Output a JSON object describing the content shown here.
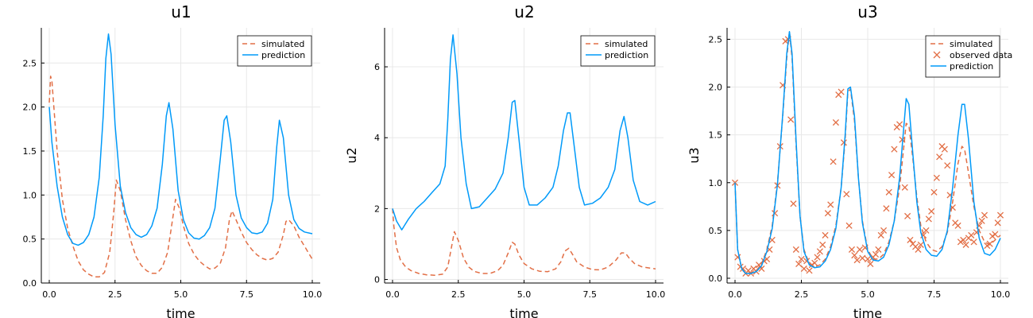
{
  "colors": {
    "simulated": "#e26f46",
    "prediction": "#009af9",
    "observed": "#e26f46"
  },
  "chart_data": [
    {
      "type": "line",
      "title": "u1",
      "xlabel": "time",
      "ylabel": "",
      "xlim": [
        0,
        10
      ],
      "ylim": [
        0,
        2.9
      ],
      "xticks": [
        "0.0",
        "2.5",
        "5.0",
        "7.5",
        "10.0"
      ],
      "yticks": [
        "0.0",
        "0.5",
        "1.0",
        "1.5",
        "2.0",
        "2.5"
      ],
      "grid": true,
      "legend": "top-right",
      "series": [
        {
          "name": "simulated",
          "style": "dashed",
          "x": [
            0,
            0.05,
            0.1,
            0.2,
            0.3,
            0.5,
            0.7,
            0.9,
            1.1,
            1.3,
            1.5,
            1.7,
            1.9,
            2.1,
            2.3,
            2.45,
            2.55,
            2.7,
            2.9,
            3.1,
            3.3,
            3.5,
            3.7,
            3.9,
            4.1,
            4.3,
            4.5,
            4.7,
            4.8,
            4.95,
            5.1,
            5.3,
            5.5,
            5.7,
            5.9,
            6.1,
            6.3,
            6.5,
            6.7,
            6.85,
            6.95,
            7.1,
            7.3,
            7.5,
            7.7,
            7.9,
            8.1,
            8.3,
            8.5,
            8.7,
            8.9,
            9.0,
            9.1,
            9.3,
            9.5,
            9.7,
            10.0
          ],
          "y": [
            2.05,
            2.35,
            2.3,
            1.9,
            1.5,
            0.95,
            0.62,
            0.42,
            0.25,
            0.15,
            0.1,
            0.07,
            0.07,
            0.12,
            0.35,
            0.8,
            1.17,
            1.05,
            0.72,
            0.48,
            0.3,
            0.2,
            0.14,
            0.11,
            0.11,
            0.18,
            0.35,
            0.75,
            0.95,
            0.85,
            0.65,
            0.45,
            0.33,
            0.25,
            0.2,
            0.16,
            0.17,
            0.22,
            0.4,
            0.72,
            0.82,
            0.72,
            0.58,
            0.46,
            0.38,
            0.32,
            0.28,
            0.26,
            0.28,
            0.35,
            0.55,
            0.7,
            0.72,
            0.65,
            0.52,
            0.42,
            0.27
          ]
        },
        {
          "name": "prediction",
          "style": "solid",
          "x": [
            0,
            0.1,
            0.3,
            0.5,
            0.7,
            0.9,
            1.1,
            1.3,
            1.5,
            1.7,
            1.9,
            2.05,
            2.15,
            2.25,
            2.35,
            2.5,
            2.7,
            2.9,
            3.1,
            3.3,
            3.5,
            3.7,
            3.9,
            4.1,
            4.3,
            4.45,
            4.55,
            4.7,
            4.9,
            5.1,
            5.3,
            5.5,
            5.7,
            5.9,
            6.1,
            6.3,
            6.5,
            6.65,
            6.75,
            6.9,
            7.1,
            7.3,
            7.5,
            7.7,
            7.9,
            8.1,
            8.3,
            8.5,
            8.65,
            8.75,
            8.9,
            9.1,
            9.3,
            9.5,
            9.7,
            10.0
          ],
          "y": [
            2.0,
            1.6,
            1.1,
            0.75,
            0.55,
            0.45,
            0.43,
            0.46,
            0.55,
            0.75,
            1.2,
            1.9,
            2.55,
            2.83,
            2.6,
            1.8,
            1.1,
            0.8,
            0.63,
            0.55,
            0.52,
            0.55,
            0.65,
            0.85,
            1.35,
            1.9,
            2.05,
            1.75,
            1.05,
            0.72,
            0.57,
            0.51,
            0.5,
            0.54,
            0.63,
            0.85,
            1.4,
            1.85,
            1.9,
            1.6,
            1.0,
            0.74,
            0.63,
            0.57,
            0.56,
            0.58,
            0.68,
            0.95,
            1.55,
            1.85,
            1.65,
            1.0,
            0.72,
            0.62,
            0.58,
            0.56
          ]
        }
      ]
    },
    {
      "type": "line",
      "title": "u2",
      "xlabel": "time",
      "ylabel": "u2",
      "xlim": [
        0,
        10
      ],
      "ylim": [
        -0.1,
        7.1
      ],
      "xticks": [
        "0.0",
        "2.5",
        "5.0",
        "7.5",
        "10.0"
      ],
      "yticks": [
        "0",
        "2",
        "4",
        "6"
      ],
      "grid": true,
      "legend": "top-right",
      "series": [
        {
          "name": "simulated",
          "style": "dashed",
          "x": [
            0,
            0.05,
            0.15,
            0.3,
            0.5,
            0.7,
            1.0,
            1.3,
            1.6,
            1.9,
            2.1,
            2.25,
            2.35,
            2.5,
            2.7,
            2.9,
            3.1,
            3.4,
            3.7,
            4.0,
            4.2,
            4.4,
            4.55,
            4.65,
            4.8,
            5.0,
            5.3,
            5.6,
            5.9,
            6.2,
            6.4,
            6.55,
            6.7,
            6.85,
            7.0,
            7.3,
            7.6,
            7.9,
            8.2,
            8.5,
            8.7,
            8.85,
            9.0,
            9.2,
            9.5,
            10.0
          ],
          "y": [
            2.0,
            1.5,
            0.9,
            0.55,
            0.35,
            0.25,
            0.17,
            0.13,
            0.12,
            0.15,
            0.35,
            0.95,
            1.35,
            1.1,
            0.6,
            0.35,
            0.23,
            0.17,
            0.17,
            0.25,
            0.4,
            0.75,
            1.05,
            1.0,
            0.7,
            0.45,
            0.3,
            0.23,
            0.22,
            0.3,
            0.5,
            0.8,
            0.88,
            0.7,
            0.5,
            0.35,
            0.28,
            0.27,
            0.35,
            0.55,
            0.75,
            0.75,
            0.6,
            0.45,
            0.35,
            0.3
          ]
        },
        {
          "name": "prediction",
          "style": "solid",
          "x": [
            0,
            0.15,
            0.35,
            0.6,
            0.9,
            1.2,
            1.5,
            1.8,
            2.0,
            2.1,
            2.2,
            2.3,
            2.45,
            2.6,
            2.8,
            3.0,
            3.3,
            3.6,
            3.9,
            4.2,
            4.4,
            4.55,
            4.65,
            4.8,
            5.0,
            5.2,
            5.5,
            5.8,
            6.1,
            6.3,
            6.5,
            6.65,
            6.75,
            6.9,
            7.1,
            7.3,
            7.6,
            7.9,
            8.2,
            8.45,
            8.65,
            8.8,
            8.95,
            9.15,
            9.4,
            9.7,
            10.0
          ],
          "y": [
            2.0,
            1.65,
            1.4,
            1.7,
            2.0,
            2.2,
            2.45,
            2.7,
            3.2,
            4.5,
            6.2,
            6.9,
            5.8,
            4.0,
            2.7,
            2.0,
            2.05,
            2.3,
            2.55,
            3.0,
            4.0,
            5.0,
            5.05,
            4.0,
            2.6,
            2.1,
            2.1,
            2.3,
            2.6,
            3.2,
            4.2,
            4.7,
            4.7,
            3.8,
            2.6,
            2.1,
            2.15,
            2.3,
            2.6,
            3.1,
            4.2,
            4.6,
            4.0,
            2.8,
            2.2,
            2.1,
            2.2
          ]
        }
      ]
    },
    {
      "type": "line",
      "title": "u3",
      "xlabel": "time",
      "ylabel": "u3",
      "xlim": [
        0,
        10
      ],
      "ylim": [
        -0.05,
        2.62
      ],
      "xticks": [
        "0.0",
        "2.5",
        "5.0",
        "7.5",
        "10.0"
      ],
      "yticks": [
        "0.0",
        "0.5",
        "1.0",
        "1.5",
        "2.0",
        "2.5"
      ],
      "grid": true,
      "legend": "top-right",
      "series": [
        {
          "name": "simulated",
          "style": "dashed",
          "x": [
            0,
            0.1,
            0.25,
            0.4,
            0.6,
            0.8,
            1.0,
            1.2,
            1.4,
            1.6,
            1.8,
            1.95,
            2.05,
            2.15,
            2.3,
            2.45,
            2.6,
            2.8,
            3.0,
            3.2,
            3.4,
            3.6,
            3.8,
            4.0,
            4.15,
            4.25,
            4.35,
            4.5,
            4.65,
            4.8,
            5.0,
            5.2,
            5.4,
            5.6,
            5.8,
            6.0,
            6.2,
            6.35,
            6.45,
            6.55,
            6.7,
            6.85,
            7.0,
            7.2,
            7.4,
            7.6,
            7.8,
            8.0,
            8.2,
            8.4,
            8.55,
            8.65,
            8.8,
            9.0,
            9.2,
            9.4,
            9.6,
            9.8,
            10.0
          ],
          "y": [
            1.0,
            0.3,
            0.1,
            0.05,
            0.06,
            0.08,
            0.15,
            0.3,
            0.55,
            1.0,
            1.7,
            2.3,
            2.58,
            2.3,
            1.4,
            0.65,
            0.3,
            0.15,
            0.12,
            0.14,
            0.2,
            0.33,
            0.55,
            0.95,
            1.45,
            1.95,
            1.98,
            1.65,
            1.05,
            0.6,
            0.3,
            0.2,
            0.2,
            0.25,
            0.38,
            0.6,
            0.95,
            1.35,
            1.62,
            1.6,
            1.25,
            0.85,
            0.55,
            0.38,
            0.3,
            0.28,
            0.33,
            0.48,
            0.8,
            1.2,
            1.38,
            1.35,
            1.1,
            0.75,
            0.5,
            0.38,
            0.35,
            0.4,
            0.45
          ]
        },
        {
          "name": "observed data",
          "style": "markers",
          "x": [
            0.0,
            0.1,
            0.2,
            0.3,
            0.4,
            0.5,
            0.6,
            0.7,
            0.8,
            0.9,
            1.0,
            1.1,
            1.2,
            1.3,
            1.4,
            1.5,
            1.6,
            1.7,
            1.8,
            1.9,
            2.0,
            2.1,
            2.2,
            2.3,
            2.4,
            2.5,
            2.6,
            2.7,
            2.8,
            2.9,
            3.0,
            3.1,
            3.2,
            3.3,
            3.4,
            3.5,
            3.6,
            3.7,
            3.8,
            3.9,
            4.0,
            4.1,
            4.2,
            4.3,
            4.4,
            4.5,
            4.6,
            4.7,
            4.8,
            4.9,
            5.0,
            5.1,
            5.2,
            5.3,
            5.4,
            5.5,
            5.6,
            5.7,
            5.8,
            5.9,
            6.0,
            6.1,
            6.2,
            6.3,
            6.4,
            6.5,
            6.6,
            6.7,
            6.8,
            6.9,
            7.0,
            7.1,
            7.2,
            7.3,
            7.4,
            7.5,
            7.6,
            7.7,
            7.8,
            7.9,
            8.0,
            8.1,
            8.2,
            8.3,
            8.4,
            8.5,
            8.6,
            8.7,
            8.8,
            8.9,
            9.0,
            9.1,
            9.2,
            9.3,
            9.4,
            9.5,
            9.6,
            9.7,
            9.8,
            9.9,
            10.0
          ],
          "y": [
            1.0,
            0.22,
            0.12,
            0.1,
            0.05,
            0.08,
            0.05,
            0.1,
            0.07,
            0.14,
            0.1,
            0.18,
            0.2,
            0.3,
            0.4,
            0.68,
            0.97,
            1.38,
            2.02,
            2.48,
            2.5,
            1.66,
            0.78,
            0.3,
            0.15,
            0.2,
            0.1,
            0.18,
            0.08,
            0.14,
            0.16,
            0.22,
            0.28,
            0.35,
            0.45,
            0.68,
            0.77,
            1.22,
            1.63,
            1.92,
            1.95,
            1.42,
            0.88,
            0.55,
            0.3,
            0.24,
            0.19,
            0.3,
            0.21,
            0.32,
            0.2,
            0.15,
            0.22,
            0.25,
            0.3,
            0.45,
            0.5,
            0.73,
            0.9,
            1.08,
            1.35,
            1.58,
            1.61,
            1.45,
            0.95,
            0.65,
            0.4,
            0.36,
            0.33,
            0.3,
            0.35,
            0.45,
            0.5,
            0.62,
            0.7,
            0.9,
            1.05,
            1.27,
            1.38,
            1.35,
            1.18,
            0.87,
            0.74,
            0.58,
            0.55,
            0.38,
            0.4,
            0.35,
            0.42,
            0.45,
            0.38,
            0.48,
            0.55,
            0.6,
            0.66,
            0.34,
            0.36,
            0.44,
            0.46,
            0.58,
            0.66
          ]
        },
        {
          "name": "prediction",
          "style": "solid",
          "x": [
            0,
            0.1,
            0.25,
            0.4,
            0.6,
            0.8,
            1.0,
            1.2,
            1.4,
            1.6,
            1.8,
            1.95,
            2.05,
            2.15,
            2.3,
            2.45,
            2.6,
            2.8,
            3.0,
            3.2,
            3.4,
            3.6,
            3.8,
            4.0,
            4.15,
            4.25,
            4.35,
            4.5,
            4.65,
            4.8,
            5.0,
            5.2,
            5.4,
            5.6,
            5.8,
            6.0,
            6.2,
            6.35,
            6.45,
            6.55,
            6.7,
            6.85,
            7.0,
            7.2,
            7.4,
            7.6,
            7.8,
            8.0,
            8.2,
            8.4,
            8.55,
            8.65,
            8.8,
            9.0,
            9.2,
            9.4,
            9.6,
            9.8,
            10.0
          ],
          "y": [
            1.0,
            0.3,
            0.1,
            0.05,
            0.05,
            0.07,
            0.13,
            0.28,
            0.52,
            0.98,
            1.72,
            2.35,
            2.58,
            2.35,
            1.45,
            0.65,
            0.28,
            0.14,
            0.11,
            0.12,
            0.18,
            0.3,
            0.52,
            0.95,
            1.5,
            1.98,
            2.0,
            1.7,
            1.05,
            0.58,
            0.28,
            0.19,
            0.18,
            0.22,
            0.35,
            0.6,
            1.05,
            1.55,
            1.88,
            1.82,
            1.3,
            0.8,
            0.48,
            0.3,
            0.24,
            0.23,
            0.3,
            0.5,
            0.95,
            1.5,
            1.82,
            1.82,
            1.45,
            0.8,
            0.42,
            0.26,
            0.24,
            0.3,
            0.42
          ]
        }
      ]
    }
  ]
}
